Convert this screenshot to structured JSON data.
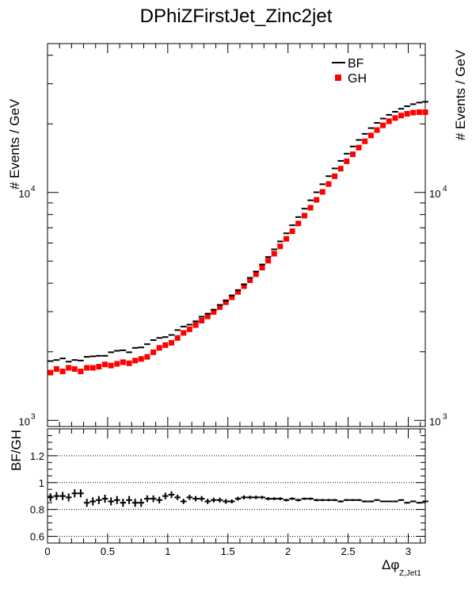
{
  "chart_data": {
    "type": "scatter",
    "title": "DPhiZFirstJet_Zinc2jet",
    "top_panel": {
      "ylabel": "# Events / GeV",
      "ylabel_right": "# Events / GeV",
      "yscale": "log",
      "ylim": [
        940,
        45000
      ],
      "yticks": [
        {
          "value": 1000,
          "base": "10",
          "exp": "3"
        },
        {
          "value": 10000,
          "base": "10",
          "exp": "4"
        }
      ],
      "ytick_right": [
        {
          "value": 1000,
          "base": "10",
          "exp": "3"
        },
        {
          "value": 10000,
          "base": "10",
          "exp": "4"
        }
      ]
    },
    "bottom_panel": {
      "ylabel": "BF/GH",
      "ylim": [
        0.55,
        1.4
      ],
      "yticks": [
        "0.6",
        "0.8",
        "1",
        "1.2"
      ],
      "ytick_values": [
        0.6,
        0.8,
        1.0,
        1.2
      ],
      "gridlines": [
        0.6,
        0.8,
        1.0,
        1.2
      ]
    },
    "x": {
      "label_main": "Δφ",
      "label_sub": "Z,Jet1",
      "xlim": [
        0,
        3.1416
      ],
      "ticks": [
        "0",
        "0.5",
        "1",
        "1.5",
        "2",
        "2.5",
        "3"
      ],
      "tick_values": [
        0,
        0.5,
        1.0,
        1.5,
        2.0,
        2.5,
        3.0
      ],
      "bin_centers": [
        0.025,
        0.075,
        0.126,
        0.176,
        0.226,
        0.276,
        0.327,
        0.377,
        0.427,
        0.478,
        0.528,
        0.578,
        0.628,
        0.679,
        0.729,
        0.779,
        0.829,
        0.88,
        0.93,
        0.98,
        1.031,
        1.081,
        1.131,
        1.181,
        1.232,
        1.282,
        1.332,
        1.382,
        1.433,
        1.483,
        1.533,
        1.584,
        1.634,
        1.684,
        1.734,
        1.785,
        1.835,
        1.885,
        1.935,
        1.986,
        2.036,
        2.086,
        2.137,
        2.187,
        2.237,
        2.287,
        2.338,
        2.388,
        2.438,
        2.488,
        2.539,
        2.589,
        2.639,
        2.69,
        2.74,
        2.79,
        2.84,
        2.891,
        2.941,
        2.991,
        3.041,
        3.092,
        3.142
      ]
    },
    "series": [
      {
        "name": "BF",
        "marker": "cross",
        "color": "#000000",
        "values": [
          1820,
          1840,
          1870,
          1810,
          1840,
          1830,
          1900,
          1910,
          1920,
          1920,
          1990,
          2020,
          2030,
          1990,
          2080,
          2090,
          2160,
          2250,
          2300,
          2320,
          2370,
          2490,
          2580,
          2630,
          2720,
          2850,
          2940,
          3060,
          3210,
          3350,
          3530,
          3720,
          3950,
          4220,
          4500,
          4830,
          5210,
          5630,
          6100,
          6620,
          7180,
          7800,
          8490,
          9240,
          10020,
          10870,
          11790,
          12750,
          13760,
          14800,
          15920,
          17000,
          18080,
          19160,
          20200,
          21100,
          21900,
          22600,
          23300,
          23900,
          24400,
          24800,
          25000
        ]
      },
      {
        "name": "GH",
        "marker": "square",
        "color": "#ff0000",
        "values": [
          1620,
          1680,
          1640,
          1700,
          1680,
          1640,
          1700,
          1700,
          1720,
          1760,
          1740,
          1770,
          1800,
          1780,
          1830,
          1860,
          1900,
          1990,
          2080,
          2140,
          2190,
          2300,
          2420,
          2510,
          2620,
          2740,
          2860,
          2990,
          3140,
          3300,
          3470,
          3660,
          3880,
          4120,
          4380,
          4680,
          5020,
          5390,
          5800,
          6260,
          6760,
          7310,
          7910,
          8570,
          9280,
          10060,
          10890,
          11780,
          12720,
          13700,
          14710,
          15740,
          16770,
          17790,
          18790,
          19700,
          20540,
          21220,
          21760,
          22150,
          22400,
          22500,
          22500
        ]
      }
    ],
    "ratio": [
      0.89,
      0.9,
      0.9,
      0.89,
      0.92,
      0.92,
      0.85,
      0.86,
      0.87,
      0.88,
      0.86,
      0.87,
      0.85,
      0.87,
      0.85,
      0.85,
      0.88,
      0.88,
      0.87,
      0.9,
      0.91,
      0.89,
      0.86,
      0.89,
      0.88,
      0.88,
      0.86,
      0.87,
      0.87,
      0.86,
      0.86,
      0.88,
      0.89,
      0.89,
      0.89,
      0.89,
      0.88,
      0.88,
      0.88,
      0.87,
      0.88,
      0.87,
      0.88,
      0.88,
      0.87,
      0.87,
      0.87,
      0.87,
      0.86,
      0.87,
      0.87,
      0.87,
      0.86,
      0.86,
      0.87,
      0.86,
      0.86,
      0.86,
      0.87,
      0.85,
      0.86,
      0.85,
      0.86
    ],
    "ratio_errors": [
      0.03,
      0.03,
      0.03,
      0.03,
      0.03,
      0.03,
      0.03,
      0.03,
      0.03,
      0.03,
      0.03,
      0.03,
      0.03,
      0.03,
      0.03,
      0.03,
      0.025,
      0.025,
      0.025,
      0.025,
      0.025,
      0.02,
      0.02,
      0.02,
      0.02,
      0.02,
      0.02,
      0.018,
      0.018,
      0.018,
      0.015,
      0.015,
      0.015,
      0.013,
      0.013,
      0.012,
      0.012,
      0.011,
      0.011,
      0.01,
      0.01,
      0.01,
      0.009,
      0.009,
      0.009,
      0.008,
      0.008,
      0.008,
      0.008,
      0.007,
      0.007,
      0.007,
      0.007,
      0.007,
      0.006,
      0.006,
      0.006,
      0.006,
      0.006,
      0.006,
      0.006,
      0.006,
      0.006
    ],
    "legend": {
      "placement": "top-right",
      "entries": [
        "BF",
        "GH"
      ]
    }
  }
}
